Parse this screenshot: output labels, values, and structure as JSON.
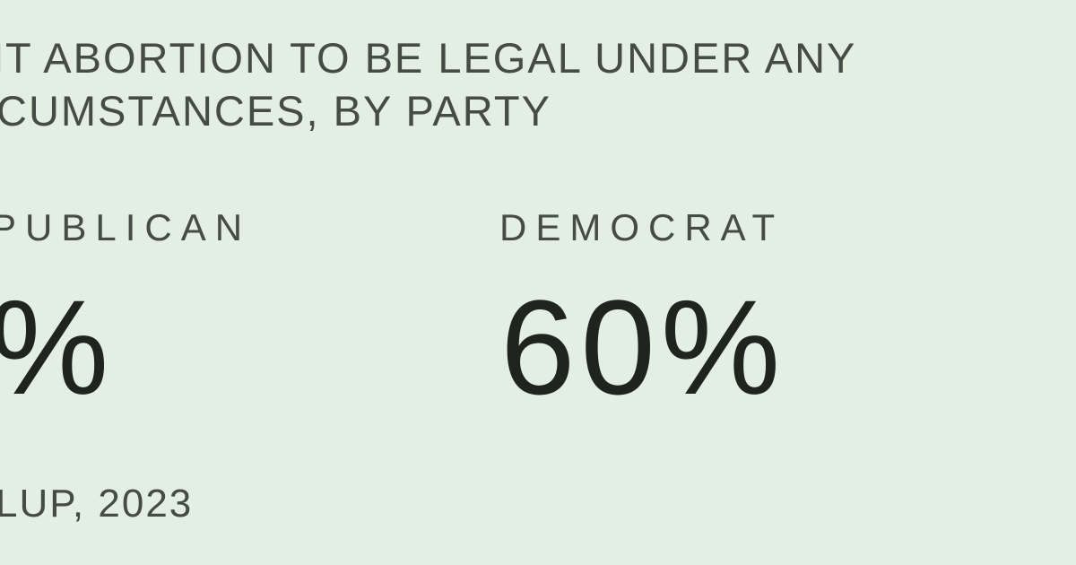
{
  "page": {
    "background_color": "#e3efe2",
    "text_color": "#454b45",
    "number_color": "#20241e"
  },
  "title": {
    "line1": "NT ABORTION TO BE LEGAL UNDER ANY",
    "line2": "CUMSTANCES, BY PARTY"
  },
  "stats": [
    {
      "label": "PUBLICAN",
      "value": "%"
    },
    {
      "label": "DEMOCRAT",
      "value": "60%"
    }
  ],
  "source": "LUP, 2023",
  "chart_data": {
    "type": "table",
    "title": "NT ABORTION TO BE LEGAL UNDER ANY CUMSTANCES, BY PARTY",
    "categories": [
      "PUBLICAN",
      "DEMOCRAT"
    ],
    "values": [
      null,
      60
    ],
    "display_values": [
      "%",
      "60%"
    ],
    "source": "LUP, 2023",
    "note_layout": "two-column big-number stat card, left column clipped off-screen"
  }
}
